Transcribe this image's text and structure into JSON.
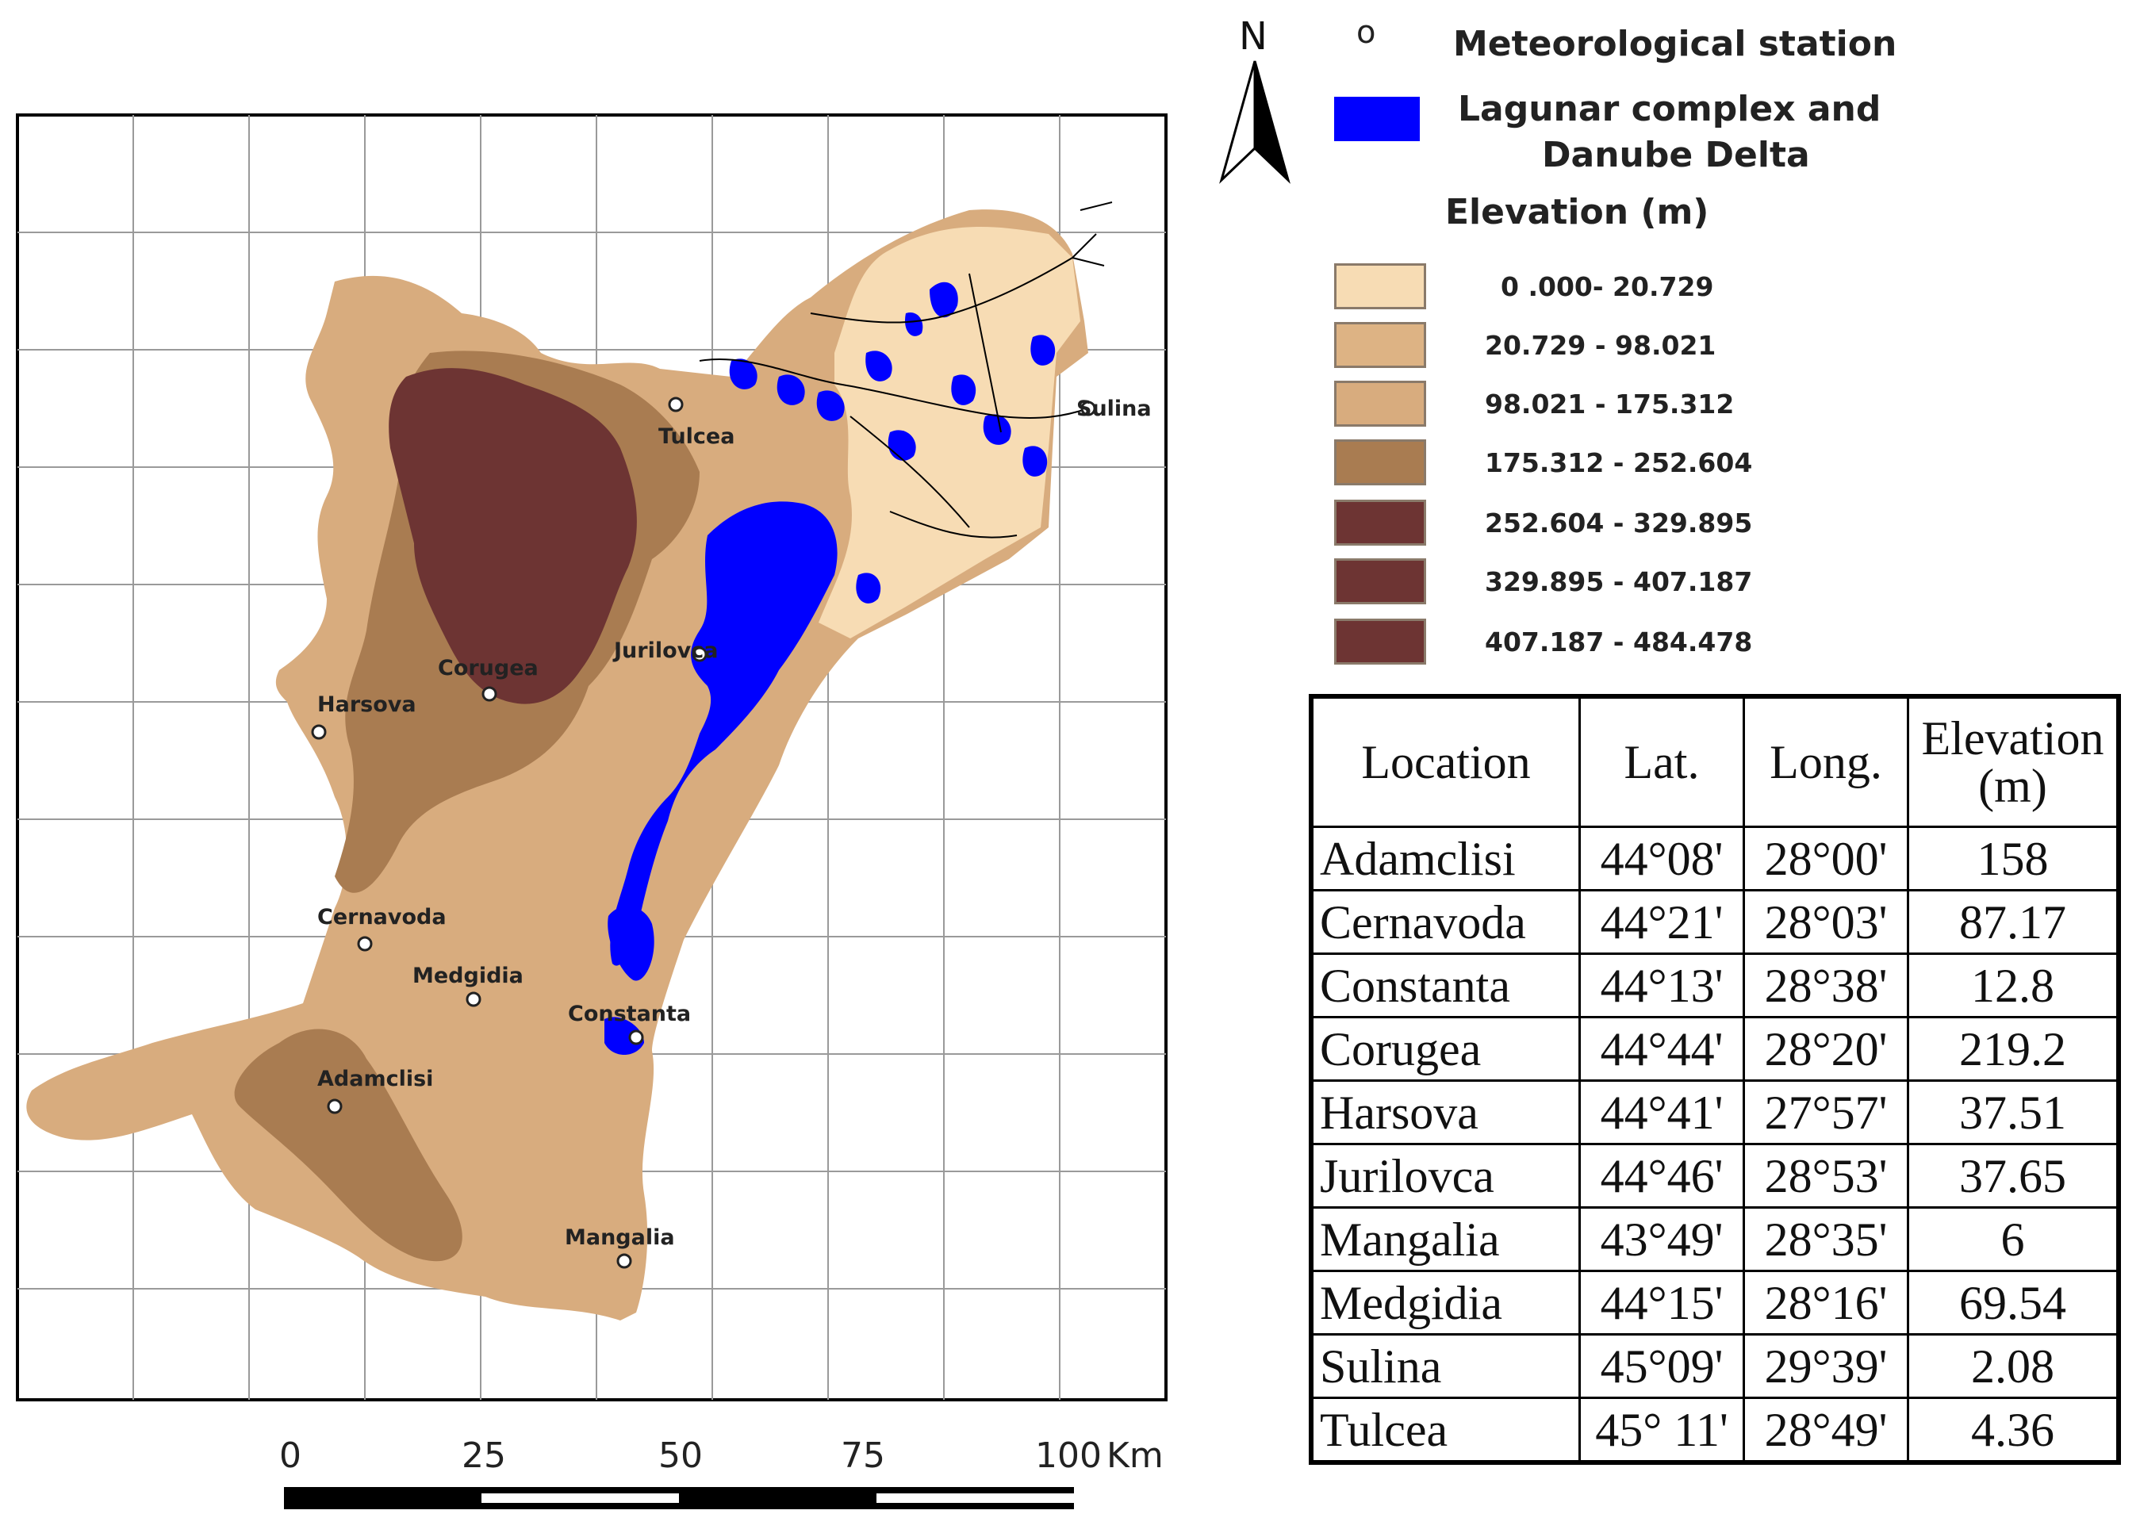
{
  "legend": {
    "station_marker": "o",
    "station_label": "Meteorological  station",
    "lagoon_label_line1": "Lagunar complex and",
    "lagoon_label_line2": "Danube Delta",
    "lagoon_color": "#0000ff",
    "elevation_title": "Elevation (m)",
    "classes": [
      {
        "range": "0 .000- 20.729",
        "color": "#f7dcb4"
      },
      {
        "range": "20.729 - 98.021",
        "color": "#ddb384"
      },
      {
        "range": "98.021 - 175.312",
        "color": "#d8ac7e"
      },
      {
        "range": "175.312 - 252.604",
        "color": "#a97c51"
      },
      {
        "range": "252.604 - 329.895",
        "color": "#6d3433"
      },
      {
        "range": "329.895 - 407.187",
        "color": "#6d3433"
      },
      {
        "range": "407.187 - 484.478",
        "color": "#6d3433"
      }
    ]
  },
  "north_arrow": {
    "letter": "N"
  },
  "map": {
    "land_color": "#d8ac7e",
    "high_color": "#6d3433",
    "mid_color": "#a97c51",
    "low_color": "#f7dcb4",
    "water_color": "#0000ff",
    "stations": [
      {
        "name": "Tulcea"
      },
      {
        "name": "Sulina"
      },
      {
        "name": "Jurilovca"
      },
      {
        "name": "Corugea"
      },
      {
        "name": "Harsova"
      },
      {
        "name": "Cernavoda"
      },
      {
        "name": "Medgidia"
      },
      {
        "name": "Constanta"
      },
      {
        "name": "Adamclisi"
      },
      {
        "name": "Mangalia"
      }
    ]
  },
  "scale_bar": {
    "ticks": [
      "0",
      "25",
      "50",
      "75",
      "100"
    ],
    "unit": "Km"
  },
  "table": {
    "headers": {
      "location": "Location",
      "lat": "Lat.",
      "long": "Long.",
      "elevation_line1": "Elevation",
      "elevation_line2": "(m)"
    },
    "rows": [
      {
        "location": "Adamclisi",
        "lat": "44°08'",
        "long": "28°00'",
        "elevation": "158"
      },
      {
        "location": "Cernavoda",
        "lat": "44°21'",
        "long": "28°03'",
        "elevation": "87.17"
      },
      {
        "location": "Constanta",
        "lat": "44°13'",
        "long": "28°38'",
        "elevation": "12.8"
      },
      {
        "location": "Corugea",
        "lat": "44°44'",
        "long": "28°20'",
        "elevation": "219.2"
      },
      {
        "location": "Harsova",
        "lat": "44°41'",
        "long": "27°57'",
        "elevation": "37.51"
      },
      {
        "location": "Jurilovca",
        "lat": "44°46'",
        "long": "28°53'",
        "elevation": "37.65"
      },
      {
        "location": "Mangalia",
        "lat": "43°49'",
        "long": "28°35'",
        "elevation": "6"
      },
      {
        "location": "Medgidia",
        "lat": "44°15'",
        "long": "28°16'",
        "elevation": "69.54"
      },
      {
        "location": "Sulina",
        "lat": "45°09'",
        "long": "29°39'",
        "elevation": "2.08"
      },
      {
        "location": "Tulcea",
        "lat": "45° 11'",
        "long": "28°49'",
        "elevation": "4.36"
      }
    ]
  }
}
